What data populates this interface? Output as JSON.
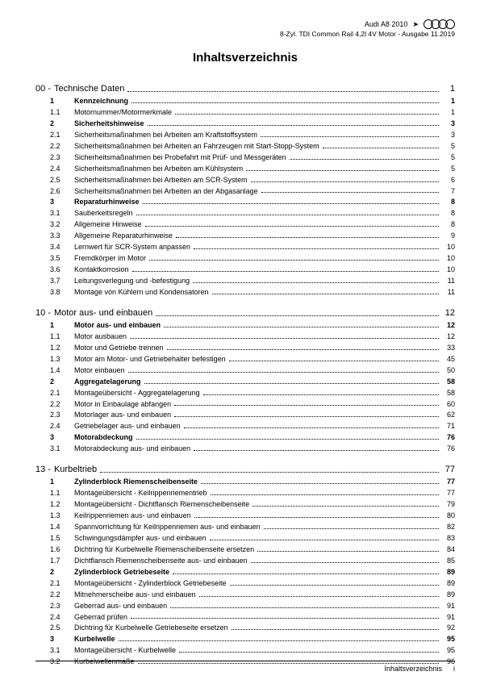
{
  "header": {
    "model": "Audi A8 2010",
    "arrow": "➤",
    "subtitle": "8-Zyl. TDI Common Rail 4,2l 4V Motor - Ausgabe 11.2019"
  },
  "title": "Inhaltsverzeichnis",
  "sections": [
    {
      "num": "00 -",
      "title": "Technische Daten",
      "page": "1",
      "items": [
        {
          "num": "1",
          "label": "Kennzeichnung",
          "page": "1",
          "bold": true
        },
        {
          "num": "1.1",
          "label": "Motornummer/Motormerkmale",
          "page": "1"
        },
        {
          "num": "2",
          "label": "Sicherheitshinweise",
          "page": "3",
          "bold": true
        },
        {
          "num": "2.1",
          "label": "Sicherheitsmaßnahmen bei Arbeiten am Kraftstoffsystem",
          "page": "3"
        },
        {
          "num": "2.2",
          "label": "Sicherheitsmaßnahmen bei Arbeiten an Fahrzeugen mit Start-Stopp-System",
          "page": "5"
        },
        {
          "num": "2.3",
          "label": "Sicherheitsmaßnahmen bei Probefahrt mit Prüf- und Messgeräten",
          "page": "5"
        },
        {
          "num": "2.4",
          "label": "Sicherheitsmaßnahmen bei Arbeiten am Kühlsystem",
          "page": "5"
        },
        {
          "num": "2.5",
          "label": "Sicherheitsmaßnahmen bei Arbeiten am SCR-System",
          "page": "6"
        },
        {
          "num": "2.6",
          "label": "Sicherheitsmaßnahmen bei Arbeiten an der Abgasanlage",
          "page": "7"
        },
        {
          "num": "3",
          "label": "Reparaturhinweise",
          "page": "8",
          "bold": true
        },
        {
          "num": "3.1",
          "label": "Sauberkeitsregeln",
          "page": "8"
        },
        {
          "num": "3.2",
          "label": "Allgemeine Hinweise",
          "page": "8"
        },
        {
          "num": "3.3",
          "label": "Allgemeine Reparaturhinweise",
          "page": "9"
        },
        {
          "num": "3.4",
          "label": "Lernwert für SCR-System anpassen",
          "page": "10"
        },
        {
          "num": "3.5",
          "label": "Fremdkörper im Motor",
          "page": "10"
        },
        {
          "num": "3.6",
          "label": "Kontaktkorrosion",
          "page": "10"
        },
        {
          "num": "3.7",
          "label": "Leitungsverlegung und -befestigung",
          "page": "11"
        },
        {
          "num": "3.8",
          "label": "Montage von Kühlern und Kondensatoren",
          "page": "11"
        }
      ]
    },
    {
      "num": "10 -",
      "title": "Motor aus- und einbauen",
      "page": "12",
      "items": [
        {
          "num": "1",
          "label": "Motor aus- und einbauen",
          "page": "12",
          "bold": true
        },
        {
          "num": "1.1",
          "label": "Motor ausbauen",
          "page": "12"
        },
        {
          "num": "1.2",
          "label": "Motor und Getriebe trennen",
          "page": "33"
        },
        {
          "num": "1.3",
          "label": "Motor am Motor- und Getriebehalter befestigen",
          "page": "45"
        },
        {
          "num": "1.4",
          "label": "Motor einbauen",
          "page": "50"
        },
        {
          "num": "2",
          "label": "Aggregatelagerung",
          "page": "58",
          "bold": true
        },
        {
          "num": "2.1",
          "label": "Montageübersicht - Aggregatelagerung",
          "page": "58"
        },
        {
          "num": "2.2",
          "label": "Motor in Einbaulage abfangen",
          "page": "60"
        },
        {
          "num": "2.3",
          "label": "Motorlager aus- und einbauen",
          "page": "62"
        },
        {
          "num": "2.4",
          "label": "Getriebelager aus- und einbauen",
          "page": "71"
        },
        {
          "num": "3",
          "label": "Motorabdeckung",
          "page": "76",
          "bold": true
        },
        {
          "num": "3.1",
          "label": "Motorabdeckung aus- und einbauen",
          "page": "76"
        }
      ]
    },
    {
      "num": "13 -",
      "title": "Kurbeltrieb",
      "page": "77",
      "items": [
        {
          "num": "1",
          "label": "Zylinderblock Riemenscheibenseite",
          "page": "77",
          "bold": true
        },
        {
          "num": "1.1",
          "label": "Montageübersicht - Keilrippenriementrieb",
          "page": "77"
        },
        {
          "num": "1.2",
          "label": "Montageübersicht - Dichtflansch Riemenscheibenseite",
          "page": "79"
        },
        {
          "num": "1.3",
          "label": "Keilrippenriemen aus- und einbauen",
          "page": "80"
        },
        {
          "num": "1.4",
          "label": "Spannvorrichtung für Keilrippenriemen aus- und einbauen",
          "page": "82"
        },
        {
          "num": "1.5",
          "label": "Schwingungsdämpfer aus- und einbauen",
          "page": "83"
        },
        {
          "num": "1.6",
          "label": "Dichtring für Kurbelwelle Riemenscheibenseite ersetzen",
          "page": "84"
        },
        {
          "num": "1.7",
          "label": "Dichtflansch Riemenscheibenseite aus- und einbauen",
          "page": "85"
        },
        {
          "num": "2",
          "label": "Zylinderblock Getriebeseite",
          "page": "89",
          "bold": true
        },
        {
          "num": "2.1",
          "label": "Montageübersicht - Zylinderblock Getriebeseite",
          "page": "89"
        },
        {
          "num": "2.2",
          "label": "Mitnehmerscheibe aus- und einbauen",
          "page": "89"
        },
        {
          "num": "2.3",
          "label": "Geberrad aus- und einbauen",
          "page": "91"
        },
        {
          "num": "2.4",
          "label": "Geberrad prüfen",
          "page": "91"
        },
        {
          "num": "2.5",
          "label": "Dichtring für Kurbelwelle Getriebeseite ersetzen",
          "page": "92"
        },
        {
          "num": "3",
          "label": "Kurbelwelle",
          "page": "95",
          "bold": true
        },
        {
          "num": "3.1",
          "label": "Montageübersicht - Kurbelwelle",
          "page": "95"
        },
        {
          "num": "3.2",
          "label": "Kurbelwellenmaße",
          "page": "96"
        }
      ]
    }
  ],
  "footer": {
    "label": "Inhaltsverzeichnis",
    "page": "i"
  }
}
